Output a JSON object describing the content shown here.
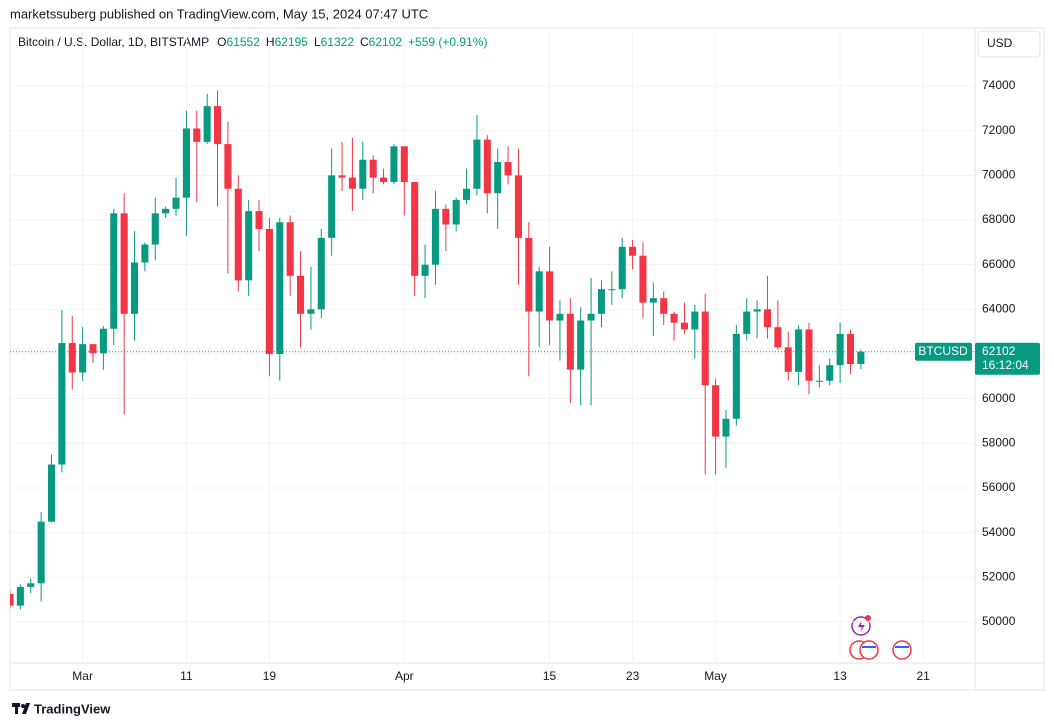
{
  "chart_data": {
    "type": "candlestick",
    "publisher": "marketssuberg published on TradingView.com, May 15, 2024 07:47 UTC",
    "symbol_info": "Bitcoin / U.S. Dollar, 1D, BITSTAMP",
    "o_label": "O",
    "o": 61552,
    "h_label": "H",
    "h": 62195,
    "l_label": "L",
    "l": 61322,
    "c_label": "C",
    "c": 62102,
    "change": "+559 (+0.91%)",
    "currency": "USD",
    "last_price_symbol": "BTCUSD",
    "last_price": 62102,
    "countdown": "16:12:04",
    "brand": "TradingView",
    "up_color": "#089981",
    "down_color": "#f23645",
    "grid": true,
    "xlim": [
      "Feb 23",
      "May 26"
    ],
    "xticks": [
      {
        "value": "Mar 1",
        "label": "Mar"
      },
      {
        "value": "Mar 11",
        "label": "11"
      },
      {
        "value": "Mar 19",
        "label": "19"
      },
      {
        "value": "Apr 1",
        "label": "Apr"
      },
      {
        "value": "Apr 15",
        "label": "15"
      },
      {
        "value": "Apr 23",
        "label": "23"
      },
      {
        "value": "May 1",
        "label": "May"
      },
      {
        "value": "May 13",
        "label": "13"
      },
      {
        "value": "May 21",
        "label": "21"
      }
    ],
    "ylim": [
      48160,
      76600
    ],
    "yticks": [
      50000,
      52000,
      54000,
      56000,
      58000,
      60000,
      62000,
      64000,
      66000,
      68000,
      70000,
      72000,
      74000
    ],
    "x": [
      "Feb 23",
      "Feb 24",
      "Feb 25",
      "Feb 26",
      "Feb 27",
      "Feb 28",
      "Feb 29",
      "Mar 1",
      "Mar 2",
      "Mar 3",
      "Mar 4",
      "Mar 5",
      "Mar 6",
      "Mar 7",
      "Mar 8",
      "Mar 9",
      "Mar 10",
      "Mar 11",
      "Mar 12",
      "Mar 13",
      "Mar 14",
      "Mar 15",
      "Mar 16",
      "Mar 17",
      "Mar 18",
      "Mar 19",
      "Mar 20",
      "Mar 21",
      "Mar 22",
      "Mar 23",
      "Mar 24",
      "Mar 25",
      "Mar 26",
      "Mar 27",
      "Mar 28",
      "Mar 29",
      "Mar 30",
      "Mar 31",
      "Apr 1",
      "Apr 2",
      "Apr 3",
      "Apr 4",
      "Apr 5",
      "Apr 6",
      "Apr 7",
      "Apr 8",
      "Apr 9",
      "Apr 10",
      "Apr 11",
      "Apr 12",
      "Apr 13",
      "Apr 14",
      "Apr 15",
      "Apr 16",
      "Apr 17",
      "Apr 18",
      "Apr 19",
      "Apr 20",
      "Apr 21",
      "Apr 22",
      "Apr 23",
      "Apr 24",
      "Apr 25",
      "Apr 26",
      "Apr 27",
      "Apr 28",
      "Apr 29",
      "Apr 30",
      "May 1",
      "May 2",
      "May 3",
      "May 4",
      "May 5",
      "May 6",
      "May 7",
      "May 8",
      "May 9",
      "May 10",
      "May 11",
      "May 12",
      "May 13",
      "May 14",
      "May 15"
    ],
    "open": [
      51250,
      50730,
      51570,
      51730,
      54490,
      57050,
      62490,
      61170,
      62440,
      62030,
      63130,
      68300,
      63800,
      66100,
      66900,
      68300,
      68500,
      69000,
      72100,
      71500,
      73100,
      71400,
      69400,
      65300,
      68400,
      67600,
      62000,
      67900,
      65500,
      63800,
      64000,
      67200,
      70000,
      69900,
      69400,
      70700,
      69900,
      69700,
      71300,
      69700,
      65500,
      66000,
      68500,
      67800,
      68900,
      69400,
      71600,
      69200,
      70600,
      70000,
      67200,
      63900,
      65700,
      63500,
      63800,
      61300,
      63500,
      63800,
      64900,
      64900,
      66800,
      66400,
      64300,
      64500,
      63800,
      63400,
      63100,
      63900,
      60600,
      58300,
      59100,
      62900,
      63900,
      64000,
      63200,
      62300,
      61200,
      63100,
      60800,
      60800,
      61500,
      62900,
      61552
    ],
    "high": [
      51400,
      51680,
      51950,
      54920,
      57500,
      63970,
      63700,
      63200,
      62450,
      63250,
      68500,
      69200,
      67500,
      67000,
      69000,
      68600,
      69900,
      72900,
      72900,
      73650,
      73800,
      72400,
      70000,
      68900,
      68900,
      68100,
      68100,
      68200,
      66600,
      65900,
      67600,
      71200,
      71500,
      71700,
      71500,
      70900,
      70300,
      71400,
      71300,
      69700,
      66900,
      69300,
      68700,
      69000,
      70300,
      72700,
      71800,
      71200,
      71300,
      71200,
      67900,
      65900,
      66800,
      64400,
      64500,
      64100,
      65400,
      65300,
      65700,
      67200,
      67100,
      67000,
      65200,
      64800,
      63900,
      64300,
      64200,
      64700,
      60900,
      59500,
      63300,
      64500,
      64400,
      65500,
      64400,
      63000,
      63300,
      63400,
      61500,
      61800,
      63400,
      63100,
      62195
    ],
    "low": [
      50600,
      50560,
      51290,
      50900,
      54460,
      56700,
      60400,
      60800,
      61600,
      61300,
      62400,
      59300,
      62600,
      65700,
      66200,
      68100,
      68200,
      67300,
      68800,
      71400,
      68600,
      65600,
      64800,
      64600,
      66600,
      61000,
      60800,
      64600,
      62300,
      63100,
      63600,
      66400,
      69300,
      68400,
      68900,
      69200,
      69600,
      69600,
      68200,
      64600,
      64500,
      65100,
      66600,
      67500,
      68700,
      69100,
      68300,
      67600,
      69600,
      65100,
      61000,
      62300,
      62400,
      61700,
      59800,
      59700,
      59700,
      63200,
      64200,
      64500,
      65800,
      63600,
      62800,
      63300,
      62600,
      62900,
      61800,
      56600,
      56600,
      56900,
      58800,
      62600,
      62700,
      62700,
      62200,
      60800,
      60600,
      60200,
      60500,
      60600,
      60700,
      61100,
      61322
    ],
    "close": [
      50730,
      51570,
      51730,
      54490,
      57050,
      62490,
      61170,
      62440,
      62030,
      63130,
      68300,
      63800,
      66100,
      66900,
      68300,
      68500,
      69000,
      72100,
      71500,
      73100,
      71400,
      69400,
      65300,
      68400,
      67600,
      62000,
      67900,
      65500,
      63800,
      64000,
      67200,
      70000,
      69900,
      69400,
      70700,
      69900,
      69700,
      71300,
      69700,
      65500,
      66000,
      68500,
      67800,
      68900,
      69400,
      71600,
      69200,
      70600,
      70000,
      67200,
      63900,
      65700,
      63500,
      63800,
      61300,
      63500,
      63800,
      64900,
      64900,
      66800,
      66400,
      64300,
      64500,
      63800,
      63400,
      63100,
      63900,
      60600,
      58300,
      59100,
      62900,
      63900,
      64000,
      63200,
      62300,
      61200,
      63100,
      60800,
      60800,
      61500,
      62900,
      61550,
      62102
    ]
  }
}
